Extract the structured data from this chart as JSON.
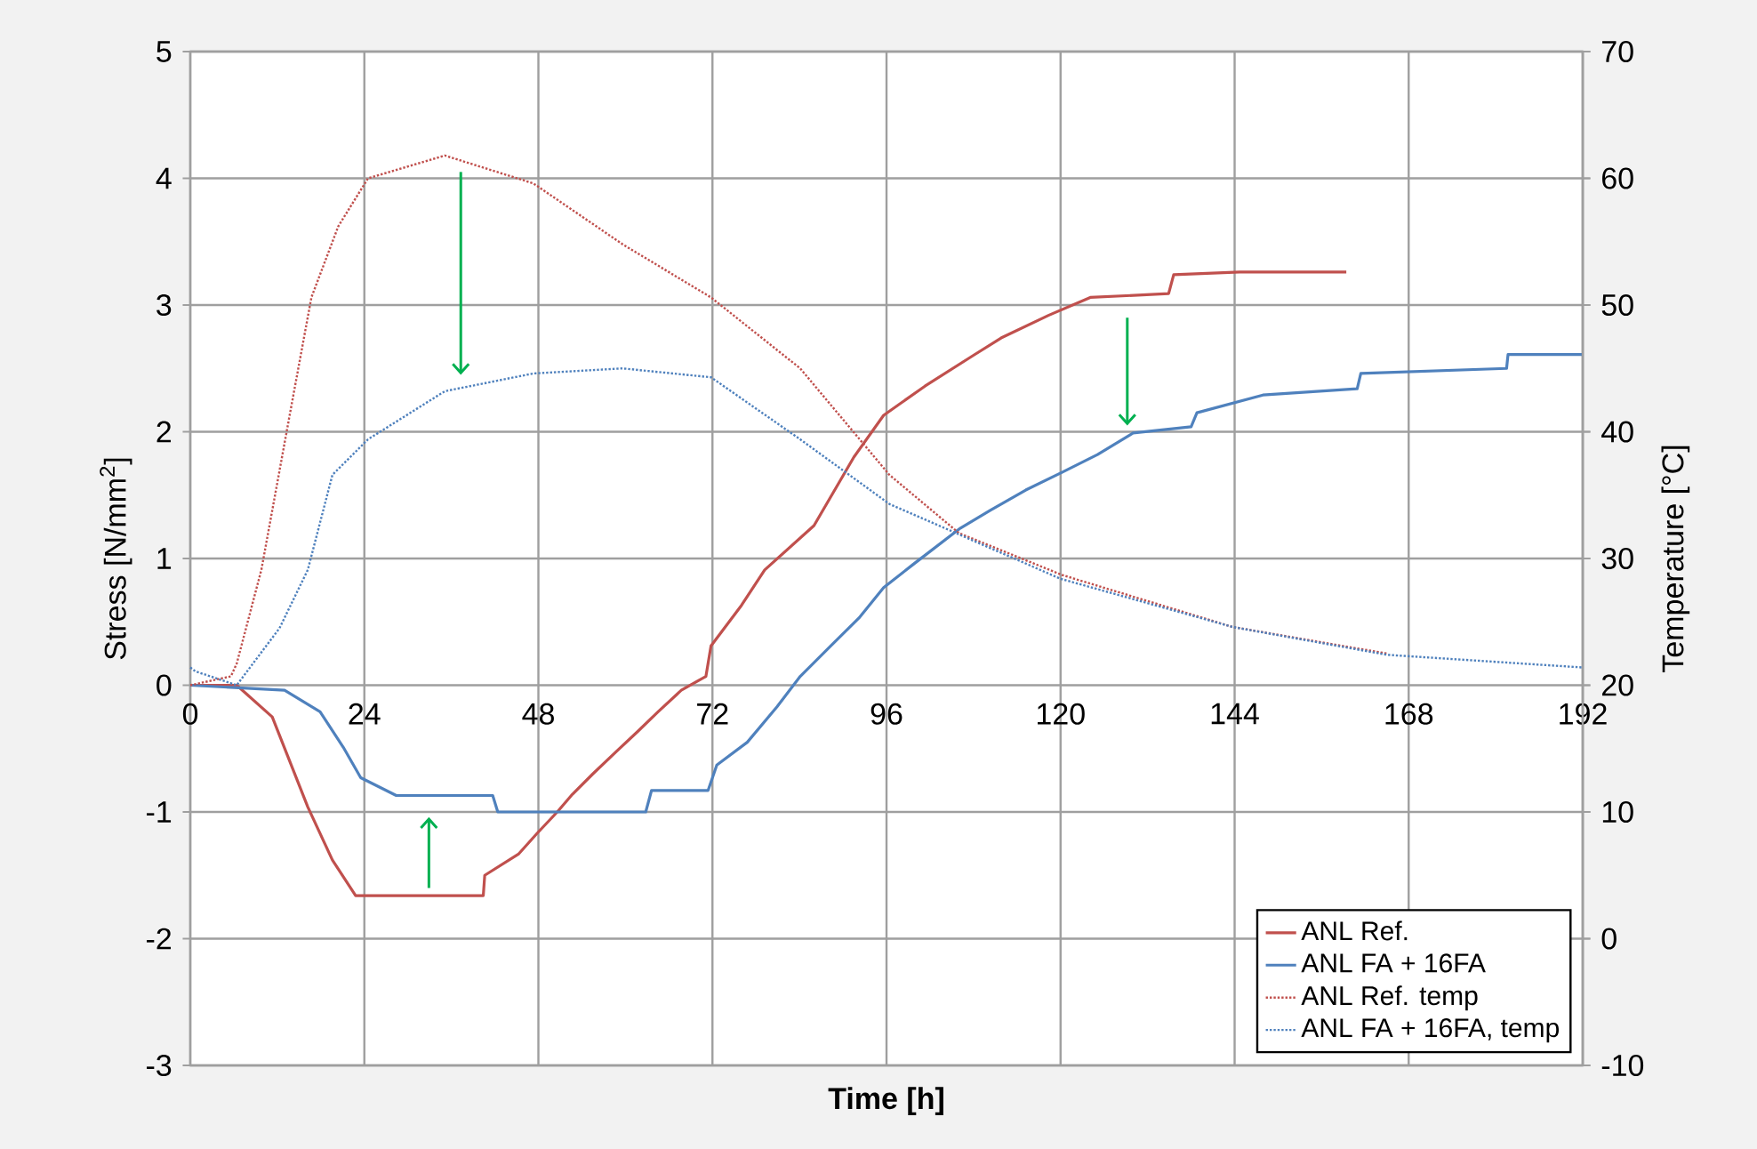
{
  "chart_data": {
    "type": "line",
    "xlabel": "Time [h]",
    "ylabel": "Stress [N/mm$^{2}$]",
    "y2label": "Temperature [°C]",
    "xlim": [
      0,
      192
    ],
    "xticks": [
      0,
      24,
      48,
      72,
      96,
      120,
      144,
      168,
      192
    ],
    "ylim": [
      -3,
      5
    ],
    "yticks": [
      -3,
      -2,
      -1,
      0,
      1,
      2,
      3,
      4,
      5
    ],
    "y2lim": [
      -10,
      70
    ],
    "y2ticks": [
      -10,
      0,
      10,
      20,
      30,
      40,
      50,
      60,
      70
    ],
    "grid": true,
    "legend": "bottom right",
    "series": [
      {
        "name": "ANL Ref.",
        "color": "#c0504d",
        "line_style": "solid",
        "x": [
          0,
          6.4,
          11.3,
          16.2,
          19.6,
          22.8,
          40.4,
          40.6,
          45.3,
          47.8,
          50.6,
          52.7,
          55.5,
          58.8,
          61.6,
          64.5,
          67.7,
          71.1,
          71.8,
          76,
          79.2,
          86,
          91.5,
          95.6,
          101.3,
          107.9,
          111.8,
          118.4,
          124.1,
          134.9,
          135.6,
          144.7,
          159.4
        ],
        "values": [
          0,
          0,
          -0.25,
          -0.96,
          -1.38,
          -1.66,
          -1.66,
          -1.5,
          -1.33,
          -1.17,
          -1.0,
          -0.86,
          -0.7,
          -0.52,
          -0.37,
          -0.21,
          -0.04,
          0.07,
          0.31,
          0.63,
          0.91,
          1.26,
          1.8,
          2.13,
          2.36,
          2.6,
          2.74,
          2.92,
          3.06,
          3.09,
          3.24,
          3.26,
          3.26
        ]
      },
      {
        "name": "ANL FA + 16FA",
        "color": "#4f81bd",
        "line_style": "solid",
        "x": [
          0,
          13,
          17.9,
          21.1,
          23.5,
          28.4,
          41.7,
          42.4,
          62.8,
          63.6,
          71.4,
          72.6,
          76.8,
          80.9,
          84.1,
          88.3,
          92.2,
          95.6,
          99.6,
          106.2,
          110.3,
          115.2,
          120.2,
          125.1,
          130,
          138,
          138.8,
          147.9,
          160.9,
          161.4,
          181.5,
          181.7,
          192
        ],
        "values": [
          0,
          -0.04,
          -0.21,
          -0.49,
          -0.73,
          -0.87,
          -0.87,
          -1.0,
          -1.0,
          -0.83,
          -0.83,
          -0.63,
          -0.45,
          -0.17,
          0.07,
          0.31,
          0.53,
          0.77,
          0.95,
          1.24,
          1.38,
          1.54,
          1.68,
          1.82,
          1.99,
          2.04,
          2.15,
          2.29,
          2.34,
          2.46,
          2.5,
          2.61,
          2.61
        ]
      },
      {
        "name": "ANL Ref. temp",
        "color": "#c0504d",
        "line_style": "dotted",
        "axis": "y2",
        "x": [
          0,
          5.6,
          6.4,
          9.8,
          13.7,
          16.7,
          20.4,
          24.5,
          35.1,
          47.3,
          59.6,
          71.8,
          84.1,
          96.4,
          106,
          120.2,
          143.7,
          165
        ],
        "values": [
          20,
          20.7,
          21.7,
          29.1,
          41.3,
          50.6,
          56.2,
          60,
          61.8,
          59.6,
          54.8,
          50.6,
          45,
          36.6,
          32,
          28.7,
          24.6,
          22.5
        ]
      },
      {
        "name": "ANL FA + 16FA, temp",
        "color": "#4f81bd",
        "line_style": "dotted",
        "axis": "y2",
        "x": [
          0,
          0.7,
          6.4,
          12.3,
          16.2,
          19.6,
          24.5,
          35.1,
          47.3,
          59.6,
          71.8,
          84.1,
          96.4,
          120,
          143.7,
          165,
          192
        ],
        "values": [
          21.4,
          21.1,
          20,
          24.5,
          29.1,
          36.6,
          39.4,
          43.2,
          44.6,
          45,
          44.3,
          39.4,
          34.3,
          28.4,
          24.6,
          22.4,
          21.4
        ]
      }
    ]
  }
}
